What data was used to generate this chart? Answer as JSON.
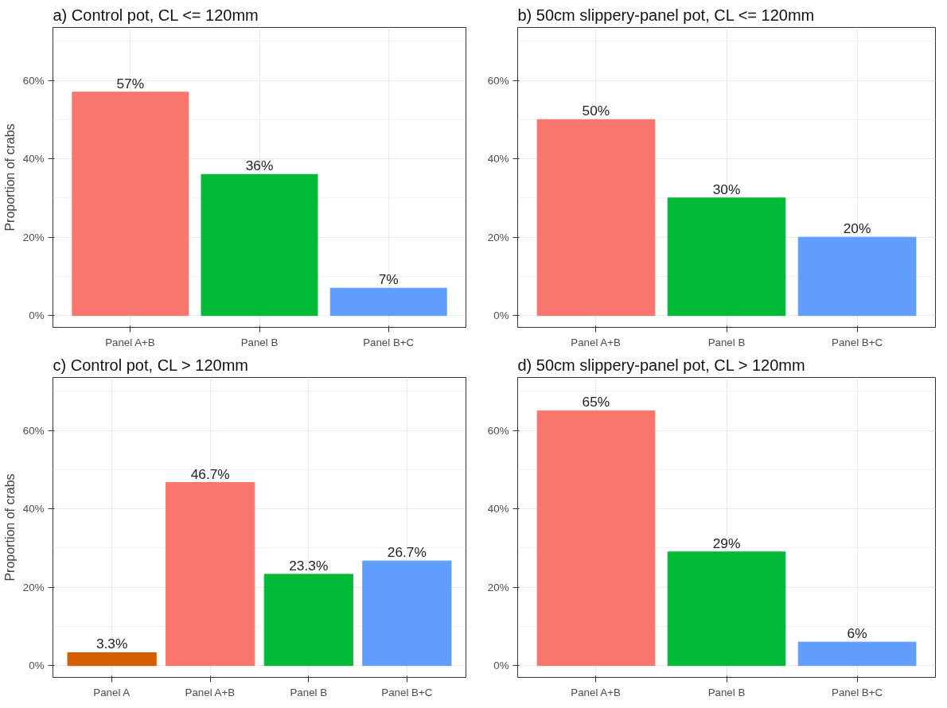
{
  "chart_data": [
    {
      "type": "bar",
      "title": "a) Control pot, CL <= 120mm",
      "ylabel": "Proportion of crabs",
      "categories": [
        "Panel A+B",
        "Panel B",
        "Panel B+C"
      ],
      "values": [
        57,
        36,
        7
      ],
      "colors": [
        "#f8766d",
        "#00ba38",
        "#619cff"
      ],
      "value_labels": [
        "57%",
        "36%",
        "7%"
      ],
      "ylim": [
        -3,
        73.5
      ],
      "yticks": [
        {
          "value": 0,
          "label": "0%"
        },
        {
          "value": 20,
          "label": "20%"
        },
        {
          "value": 40,
          "label": "40%"
        },
        {
          "value": 60,
          "label": "60%"
        }
      ],
      "grid": true
    },
    {
      "type": "bar",
      "title": "b) 50cm slippery-panel pot, CL <= 120mm",
      "categories": [
        "Panel A+B",
        "Panel B",
        "Panel B+C"
      ],
      "values": [
        50,
        30,
        20
      ],
      "colors": [
        "#f8766d",
        "#00ba38",
        "#619cff"
      ],
      "value_labels": [
        "50%",
        "30%",
        "20%"
      ],
      "ylim": [
        -3,
        73.5
      ],
      "yticks": [
        {
          "value": 0,
          "label": "0%"
        },
        {
          "value": 20,
          "label": "20%"
        },
        {
          "value": 40,
          "label": "40%"
        },
        {
          "value": 60,
          "label": "60%"
        }
      ],
      "grid": true
    },
    {
      "type": "bar",
      "title": "c) Control pot, CL > 120mm",
      "ylabel": "Proportion of crabs",
      "categories": [
        "Panel A",
        "Panel A+B",
        "Panel B",
        "Panel B+C"
      ],
      "values": [
        3.3,
        46.7,
        23.3,
        26.7
      ],
      "colors": [
        "#d55e00",
        "#f8766d",
        "#00ba38",
        "#619cff"
      ],
      "value_labels": [
        "3.3%",
        "46.7%",
        "23.3%",
        "26.7%"
      ],
      "ylim": [
        -3,
        73.5
      ],
      "yticks": [
        {
          "value": 0,
          "label": "0%"
        },
        {
          "value": 20,
          "label": "20%"
        },
        {
          "value": 40,
          "label": "40%"
        },
        {
          "value": 60,
          "label": "60%"
        }
      ],
      "grid": true
    },
    {
      "type": "bar",
      "title": "d) 50cm slippery-panel pot, CL > 120mm",
      "categories": [
        "Panel A+B",
        "Panel B",
        "Panel B+C"
      ],
      "values": [
        65,
        29,
        6
      ],
      "colors": [
        "#f8766d",
        "#00ba38",
        "#619cff"
      ],
      "value_labels": [
        "65%",
        "29%",
        "6%"
      ],
      "ylim": [
        -3,
        73.5
      ],
      "yticks": [
        {
          "value": 0,
          "label": "0%"
        },
        {
          "value": 20,
          "label": "20%"
        },
        {
          "value": 40,
          "label": "40%"
        },
        {
          "value": 60,
          "label": "60%"
        }
      ],
      "grid": true
    }
  ]
}
